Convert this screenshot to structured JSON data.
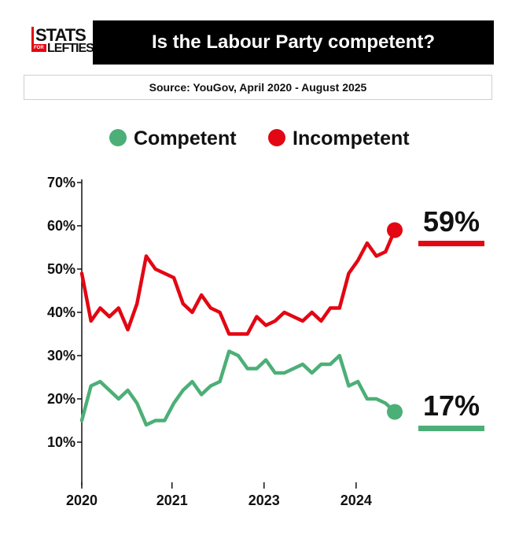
{
  "logo": {
    "line1": "STATS",
    "line2": "LEFTIES",
    "small": "FOR"
  },
  "header": {
    "title": "Is the Labour Party competent?",
    "source": "Source: YouGov, April 2020 - August 2025"
  },
  "colors": {
    "competent": "#4caf77",
    "incompetent": "#e30613",
    "axis": "#111111"
  },
  "chart_data": {
    "type": "line",
    "title": "Is the Labour Party competent?",
    "xlabel": "",
    "ylabel": "",
    "y_ticks": [
      "70%",
      "60%",
      "50%",
      "40%",
      "30%",
      "20%",
      "10%"
    ],
    "y_tick_values": [
      70,
      60,
      50,
      40,
      30,
      20,
      10
    ],
    "ylim": [
      0,
      70
    ],
    "x_ticks": [
      "2020",
      "2021",
      "2023",
      "2024"
    ],
    "x_tick_values": [
      0,
      9.8,
      19.8,
      29.8
    ],
    "xlim": [
      0,
      34
    ],
    "grid": false,
    "legend_position": "top",
    "series": [
      {
        "name": "Competent",
        "color_key": "competent",
        "values": [
          15,
          23,
          24,
          22,
          20,
          22,
          19,
          14,
          15,
          15,
          19,
          22,
          24,
          21,
          23,
          24,
          31,
          30,
          27,
          27,
          29,
          26,
          26,
          27,
          28,
          26,
          28,
          28,
          30,
          23,
          24,
          20,
          20,
          19,
          17
        ],
        "end_label": "17%"
      },
      {
        "name": "Incompetent",
        "color_key": "incompetent",
        "values": [
          49,
          38,
          41,
          39,
          41,
          36,
          42,
          53,
          50,
          49,
          48,
          42,
          40,
          44,
          41,
          40,
          35,
          35,
          35,
          39,
          37,
          38,
          40,
          39,
          38,
          40,
          38,
          41,
          41,
          49,
          52,
          56,
          53,
          54,
          59
        ],
        "end_label": "59%"
      }
    ]
  }
}
